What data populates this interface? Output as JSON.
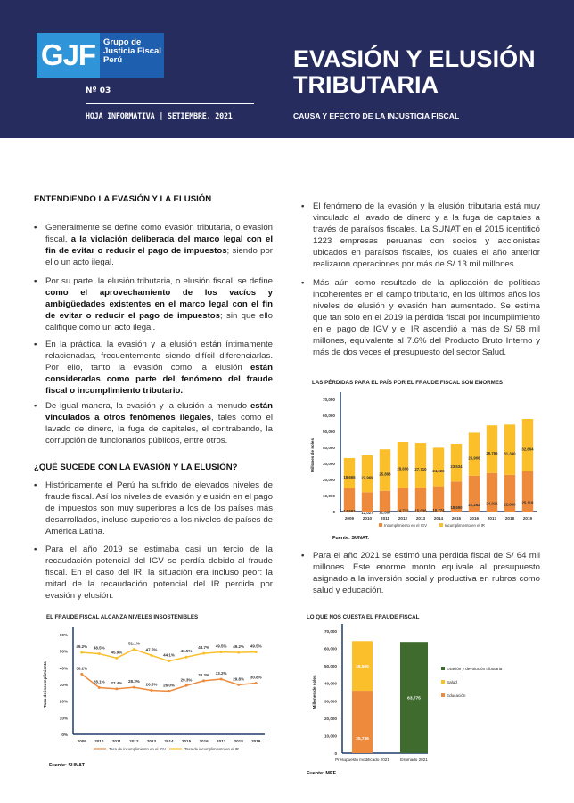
{
  "header": {
    "logo_initials": "GJF",
    "logo_text": "Grupo de\nJusticia Fiscal\nPerú",
    "issue": "Nº 03",
    "sheet_info": "HOJA INFORMATIVA | SETIEMBRE, 2021",
    "title": "EVASIÓN Y ELUSIÓN\nTRIBUTARIA",
    "subtitle": "CAUSA Y EFECTO DE LA INJUSTICIA FISCAL"
  },
  "left": {
    "heading1": "ENTENDIENDO LA EVASIÓN Y LA ELUSIÓN",
    "heading2": "¿QUÉ SUCEDE CON LA EVASIÓN Y LA ELUSIÓN?",
    "bullets": [
      [
        {
          "t": "Generalmente se define como evasión tributaria, o evasión fiscal, "
        },
        {
          "t": "a la violación deliberada del marco legal con el fin de evitar o reducir el pago de impuestos",
          "b": true
        },
        {
          "t": "; siendo por ello un acto ilegal."
        }
      ],
      [
        {
          "t": "Por su parte, la elusión tributaria, o elusión fiscal, se define "
        },
        {
          "t": "como el aprovechamiento de los vacíos y ambigüedades existentes en el marco legal con el fin de evitar o reducir el pago de impuestos",
          "b": true
        },
        {
          "t": "; sin que ello califique como un acto ilegal."
        }
      ],
      [
        {
          "t": "En la práctica, la evasión y la elusión están íntimamente relacionadas, frecuentemente siendo difícil diferenciarlas. Por ello, tanto la evasión como la elusión "
        },
        {
          "t": "están consideradas como parte del fenómeno del fraude fiscal o incumplimiento tributario.",
          "b": true
        }
      ],
      [
        {
          "t": "De igual manera, la evasión y la elusión a menudo "
        },
        {
          "t": "están vinculados a otros fenómenos ilegales",
          "b": true
        },
        {
          "t": ", tales como el lavado de dinero, la fuga de capitales, el contrabando, la corrupción de funcionarios públicos, entre otros."
        }
      ],
      [
        {
          "t": "Históricamente el Perú ha sufrido de elevados niveles de fraude fiscal. Así los niveles de evasión y elusión en el pago de impuestos son muy superiores a los de los países más desarrollados, incluso superiores a los niveles de países de América Latina."
        }
      ],
      [
        {
          "t": "Para el año 2019 se estimaba casi un tercio de la recaudación potencial del IGV se perdía debido al fraude fiscal. En el caso del IR, la situación era incluso peor: la mitad de la recaudación potencial del IR perdida por evasión y elusión."
        }
      ]
    ]
  },
  "right": {
    "bullets": [
      [
        {
          "t": "El fenómeno de la evasión y la elusión tributaria está muy vinculado al lavado de dinero y a la fuga de capitales a través de paraísos fiscales. La SUNAT en el 2015 identificó 1223 empresas peruanas con socios y accionistas ubicados en paraísos fiscales, los cuales el año anterior realizaron operaciones por más de S/ 13 mil millones."
        }
      ],
      [
        {
          "t": "Más aún como resultado de la aplicación de políticas incoherentes en el campo tributario, en los últimos años los niveles de elusión y evasión han aumentado. Se estima que tan solo en el 2019 la pérdida fiscal por incumplimiento en el pago de IGV y el IR ascendió a más de S/ 58 mil millones, equivalente al 7.6% del Producto Bruto Interno y más de dos veces el presupuesto del sector Salud."
        }
      ],
      [
        {
          "t": "Para el año 2021 se estimó una perdida fiscal de S/ 64 mil millones. Este enorme monto equivale al presupuesto asignado a la inversión social y productiva en rubros como salud y educación."
        }
      ]
    ]
  },
  "colors": {
    "navy": "#272c5e",
    "igv": "#ee8a3c",
    "ir": "#fbbf2c",
    "green": "#3f6b2f",
    "axis": "#1f3b6e"
  },
  "chart_data": [
    {
      "type": "bar",
      "stacked": true,
      "title": "LAS PÉRDIDAS PARA EL PAÍS POR EL FRAUDE FISCAL SON ENORMES",
      "ylabel": "Millones de soles",
      "ylim": [
        0,
        70000
      ],
      "yticks": [
        "0",
        "10,000",
        "20,000",
        "30,000",
        "40,000",
        "50,000",
        "60,000",
        "70,000"
      ],
      "categories": [
        "2009",
        "2010",
        "2011",
        "2012",
        "2013",
        "2014",
        "2015",
        "2016",
        "2017",
        "2018",
        "2019"
      ],
      "series": [
        {
          "name": "Incumplimiento en el IGV",
          "values": [
            14693,
            12027,
            12887,
            14732,
            15036,
            15774,
            18690,
            22282,
            24011,
            22860,
            25119
          ],
          "labels": [
            "14,693",
            "12,027",
            "12,887",
            "14,732",
            "15,036",
            "15,774",
            "18,690",
            "22,282",
            "24,011",
            "22,860",
            "25,119"
          ]
        },
        {
          "name": "Incumplimiento en el IR",
          "values": [
            18665,
            22969,
            25893,
            28606,
            27710,
            24026,
            23534,
            26906,
            29766,
            31390,
            32664
          ],
          "labels": [
            "18,665",
            "22,969",
            "25,893",
            "28,606",
            "27,710",
            "24,026",
            "23,534",
            "26,906",
            "29,766",
            "31,390",
            "32,664"
          ]
        }
      ],
      "legend": "bottom",
      "source": "Fuente: SUNAT."
    },
    {
      "type": "line",
      "title": "EL FRAUDE FISCAL ALCANZA NIVELES INSOSTENIBLES",
      "ylabel": "Tasa de incumplimiento",
      "ylim": [
        0,
        60
      ],
      "yticks": [
        "0%",
        "10%",
        "20%",
        "30%",
        "40%",
        "50%",
        "60%"
      ],
      "categories": [
        "2009",
        "2010",
        "2011",
        "2012",
        "2013",
        "2014",
        "2015",
        "2016",
        "2017",
        "2018",
        "2019"
      ],
      "series": [
        {
          "name": "Tasa de incumplimiento en el IGV",
          "values": [
            36.2,
            28.1,
            27.4,
            28.3,
            26.5,
            26.0,
            29.3,
            32.2,
            33.2,
            29.8,
            30.8
          ],
          "labels": [
            "36.2%",
            "28.1%",
            "27.4%",
            "28.3%",
            "26.5%",
            "26.0%",
            "29.3%",
            "32.2%",
            "33.2%",
            "29.8%",
            "30.8%"
          ]
        },
        {
          "name": "Tasa de incumplimiento en el IR",
          "values": [
            49.2,
            48.5,
            45.9,
            51.1,
            47.5,
            44.1,
            46.5,
            48.7,
            49.5,
            49.2,
            49.5
          ],
          "labels": [
            "49.2%",
            "48.5%",
            "45.9%",
            "51.1%",
            "47.5%",
            "44.1%",
            "46.5%",
            "48.7%",
            "49.5%",
            "49.2%",
            "49.5%"
          ]
        }
      ],
      "legend": "bottom",
      "source": "Fuente: SUNAT."
    },
    {
      "type": "bar",
      "stacked": true,
      "title": "LO QUE NOS CUESTA EL FRAUDE FISCAL",
      "ylabel": "Millones de soles",
      "ylim": [
        0,
        70000
      ],
      "yticks": [
        "0",
        "10,000",
        "20,000",
        "30,000",
        "40,000",
        "50,000",
        "60,000",
        "70,000"
      ],
      "categories": [
        "Presupuesto modificado 2021",
        "Estimado 2021"
      ],
      "series": [
        {
          "name": "Educación",
          "values": [
            35736,
            0
          ],
          "labels": [
            "35,736",
            ""
          ]
        },
        {
          "name": "Salud",
          "values": [
            28500,
            0
          ],
          "labels": [
            "28,500",
            ""
          ]
        },
        {
          "name": "Evasión y devolución tributaria",
          "values": [
            0,
            63775
          ],
          "labels": [
            "",
            "63,775"
          ]
        }
      ],
      "legend": "right",
      "source": "Fuente: MEF."
    }
  ]
}
